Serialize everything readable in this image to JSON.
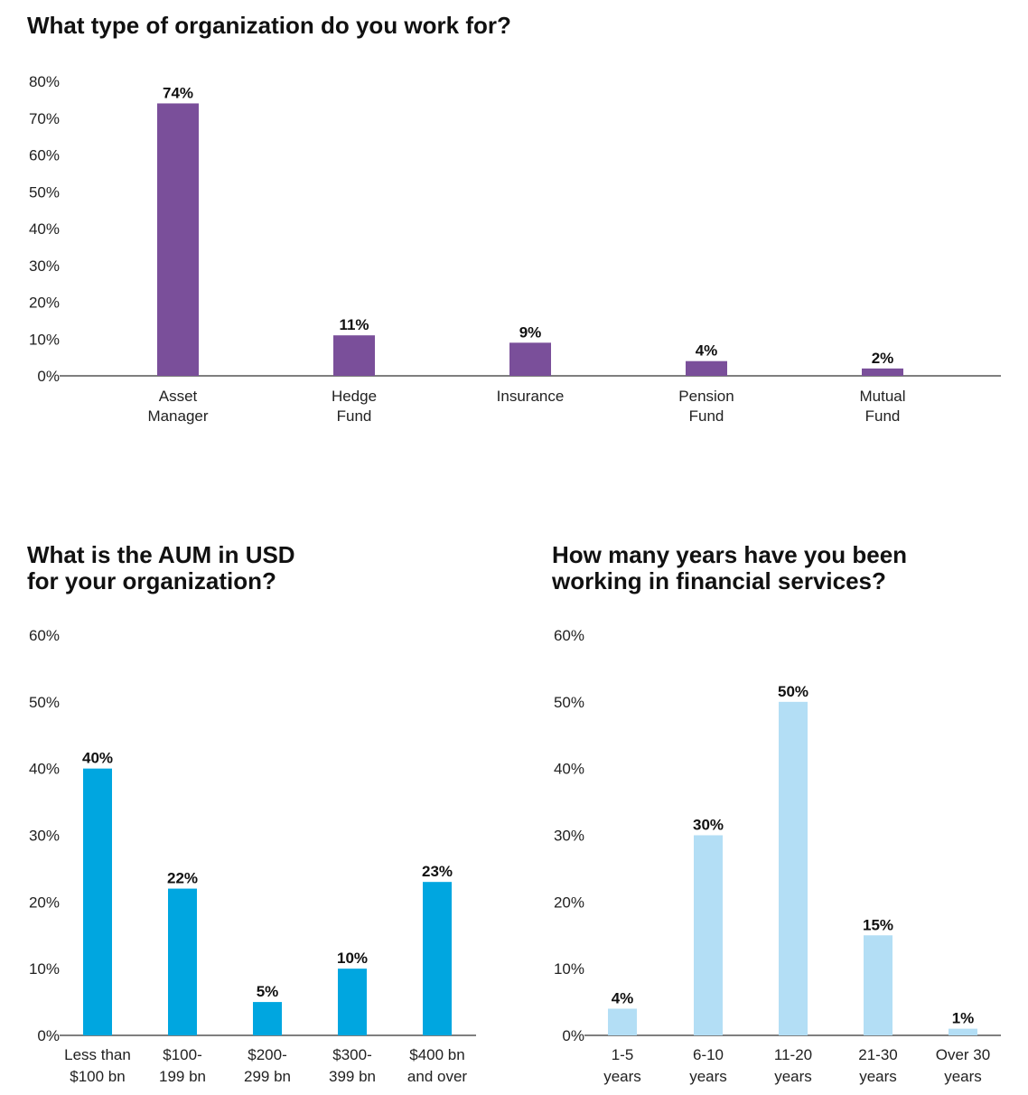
{
  "charts": {
    "org_title": "What type of organization do you work for?",
    "aum_title": "What is the AUM in USD\nfor your organization?",
    "years_title": "How many years have you been\nworking in financial services?"
  },
  "colors": {
    "purple": "#7a4f9a",
    "blue": "#00a6e0",
    "lightblue": "#b3def5",
    "axis": "#333333"
  },
  "chart_data": [
    {
      "type": "bar",
      "title": "What type of organization do you work for?",
      "categories": [
        "Asset\nManager",
        "Hedge\nFund",
        "Insurance",
        "Pension\nFund",
        "Mutual\nFund"
      ],
      "values": [
        74,
        11,
        9,
        4,
        2
      ],
      "data_labels": [
        "74%",
        "11%",
        "9%",
        "4%",
        "2%"
      ],
      "yticks": [
        "0%",
        "10%",
        "20%",
        "30%",
        "40%",
        "50%",
        "60%",
        "70%",
        "80%"
      ],
      "ylim": [
        0,
        80
      ],
      "color": "#7a4f9a",
      "grid": false
    },
    {
      "type": "bar",
      "title": "What is the AUM in USD for your organization?",
      "categories": [
        "Less than\n$100 bn",
        "$100-\n199 bn",
        "$200-\n299 bn",
        "$300-\n399 bn",
        "$400 bn\nand over"
      ],
      "values": [
        40,
        22,
        5,
        10,
        23
      ],
      "data_labels": [
        "40%",
        "22%",
        "5%",
        "10%",
        "23%"
      ],
      "yticks": [
        "0%",
        "10%",
        "20%",
        "30%",
        "40%",
        "50%",
        "60%"
      ],
      "ylim": [
        0,
        60
      ],
      "color": "#00a6e0",
      "grid": false
    },
    {
      "type": "bar",
      "title": "How many years have you been working in financial services?",
      "categories": [
        "1-5\nyears",
        "6-10\nyears",
        "11-20\nyears",
        "21-30\nyears",
        "Over 30\nyears"
      ],
      "values": [
        4,
        30,
        50,
        15,
        1
      ],
      "data_labels": [
        "4%",
        "30%",
        "50%",
        "15%",
        "1%"
      ],
      "yticks": [
        "0%",
        "10%",
        "20%",
        "30%",
        "40%",
        "50%",
        "60%"
      ],
      "ylim": [
        0,
        60
      ],
      "color": "#b3def5",
      "grid": false
    }
  ]
}
